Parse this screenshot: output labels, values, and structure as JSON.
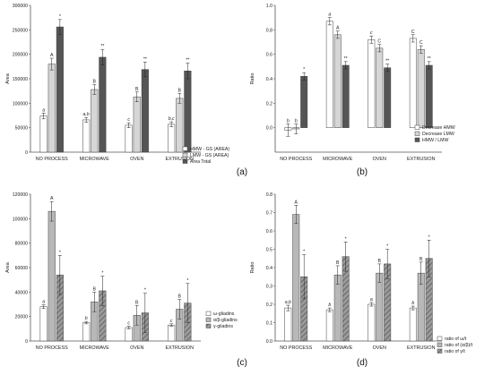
{
  "colors": {
    "white_bar": "#ffffff",
    "light_gray_bar": "#d6d6d6",
    "mid_gray_bar": "#b8b8b8",
    "dark_gray_bar": "#555555",
    "stroke": "#444444",
    "axis": "#555555"
  },
  "chart_data": [
    {
      "type": "bar",
      "panel": "(a)",
      "categories": [
        "NO PROCESS",
        "MICROWAVE",
        "OVEN",
        "EXTRUSION"
      ],
      "ylabel": "Area",
      "ylim": [
        0,
        300000
      ],
      "yticks": [
        0,
        50000,
        100000,
        150000,
        200000,
        250000,
        300000
      ],
      "series": [
        {
          "name": "HMW - GS (AREA)",
          "fill": "white",
          "values": [
            74000,
            66000,
            55000,
            57000
          ],
          "errors": [
            6000,
            5000,
            5000,
            5000
          ],
          "labels": [
            "a",
            "a,b",
            "c",
            "b,c"
          ]
        },
        {
          "name": "LMW - GS (AREA)",
          "fill": "light",
          "values": [
            180000,
            128000,
            113000,
            110000
          ],
          "errors": [
            12000,
            10000,
            10000,
            10000
          ],
          "labels": [
            "A",
            "B",
            "B",
            "B"
          ]
        },
        {
          "name": "Area Total",
          "fill": "dark",
          "values": [
            256000,
            194000,
            169000,
            166000
          ],
          "errors": [
            15000,
            16000,
            15000,
            16000
          ],
          "labels": [
            "*",
            "**",
            "**",
            "**"
          ]
        }
      ]
    },
    {
      "type": "bar",
      "panel": "(b)",
      "categories": [
        "NO PROCESS",
        "MICROWAVE",
        "OVEN",
        "EXTRUSION"
      ],
      "ylabel": "Ratio",
      "ylim": [
        -0.2,
        1.0
      ],
      "yticks": [
        0.0,
        0.2,
        0.4,
        0.6,
        0.8,
        1.0
      ],
      "series": [
        {
          "name": "Decrease HMW",
          "fill": "white",
          "values": [
            -0.02,
            0.87,
            0.72,
            0.73
          ],
          "errors": [
            0.05,
            0.03,
            0.03,
            0.03
          ],
          "labels": [
            "b",
            "a",
            "c",
            "C"
          ]
        },
        {
          "name": "Decrease LMW",
          "fill": "light",
          "values": [
            -0.01,
            0.76,
            0.65,
            0.64
          ],
          "errors": [
            0.04,
            0.03,
            0.03,
            0.03
          ],
          "labels": [
            "b",
            "A",
            "C",
            "C"
          ]
        },
        {
          "name": "HMW / LMW",
          "fill": "dark",
          "values": [
            0.42,
            0.51,
            0.49,
            0.51
          ],
          "errors": [
            0.03,
            0.03,
            0.03,
            0.03
          ],
          "labels": [
            "*",
            "**",
            "**",
            "**"
          ]
        }
      ]
    },
    {
      "type": "bar",
      "panel": "(c)",
      "categories": [
        "NO PROCESS",
        "MICROWAVE",
        "OVEN",
        "EXTRUSION"
      ],
      "ylabel": "Area",
      "ylim": [
        0,
        120000
      ],
      "yticks": [
        0,
        20000,
        40000,
        60000,
        80000,
        100000,
        120000
      ],
      "series": [
        {
          "name": "ω-gliadins",
          "fill": "white",
          "values": [
            28000,
            15000,
            11000,
            13000
          ],
          "errors": [
            1500,
            1000,
            1000,
            1000
          ],
          "labels": [
            "a",
            "b",
            "c",
            "c"
          ]
        },
        {
          "name": "α/β-gliadins",
          "fill": "mid",
          "values": [
            106000,
            32000,
            21000,
            26000
          ],
          "errors": [
            8000,
            8000,
            8000,
            8000
          ],
          "labels": [
            "A",
            "B",
            "B",
            "B"
          ]
        },
        {
          "name": "γ-gliadins",
          "fill": "hatch",
          "values": [
            54000,
            41000,
            23000,
            31000
          ],
          "errors": [
            16000,
            12000,
            16000,
            16000
          ],
          "labels": [
            "*",
            "*",
            "*",
            "*"
          ]
        }
      ]
    },
    {
      "type": "bar",
      "panel": "(d)",
      "categories": [
        "NO PROCESS",
        "MICROWAVE",
        "OVEN",
        "EXTRUSION"
      ],
      "ylabel": "Ratio",
      "ylim": [
        0,
        0.8
      ],
      "yticks": [
        0.0,
        0.1,
        0.2,
        0.3,
        0.4,
        0.5,
        0.6,
        0.7,
        0.8
      ],
      "series": [
        {
          "name": "ratio of ω/t",
          "fill": "white",
          "values": [
            0.18,
            0.17,
            0.2,
            0.18
          ],
          "errors": [
            0.015,
            0.01,
            0.01,
            0.01
          ],
          "labels": [
            "a,b",
            "b",
            "a",
            "b"
          ]
        },
        {
          "name": "ratio of (α/β)/t",
          "fill": "mid",
          "values": [
            0.69,
            0.36,
            0.37,
            0.37
          ],
          "errors": [
            0.05,
            0.05,
            0.05,
            0.06
          ],
          "labels": [
            "A",
            "B",
            "B",
            "B"
          ]
        },
        {
          "name": "ratio of γ/t",
          "fill": "hatch",
          "values": [
            0.35,
            0.46,
            0.42,
            0.45
          ],
          "errors": [
            0.12,
            0.08,
            0.08,
            0.1
          ],
          "labels": [
            "*",
            "*",
            "*",
            "*"
          ]
        }
      ]
    }
  ]
}
